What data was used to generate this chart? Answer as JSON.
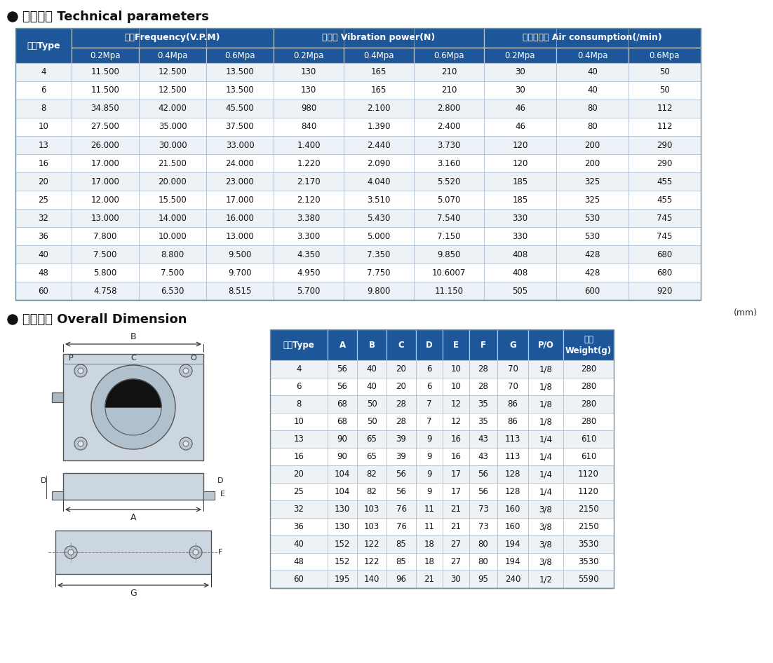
{
  "title1": "技术参数 Technical parameters",
  "title2": "外形尺寸 Overall Dimension",
  "header_bg": "#1e5799",
  "header_text": "#ffffff",
  "border_color": "#a0b4c8",
  "cell_text": "#222222",
  "tech_span_labels": [
    "型号Type",
    "频率Frequency(V.P.M)",
    "振动力 Vibration power(N)",
    "空气消耗量 Air consumption(/min)"
  ],
  "sub_labels": [
    "0.2Mpa",
    "0.4Mpa",
    "0.6Mpa",
    "0.2Mpa",
    "0.4Mpa",
    "0.6Mpa",
    "0.2Mpa",
    "0.4Mpa",
    "0.6Mpa"
  ],
  "tech_data": [
    [
      "4",
      "11.500",
      "12.500",
      "13.500",
      "130",
      "165",
      "210",
      "30",
      "40",
      "50"
    ],
    [
      "6",
      "11.500",
      "12.500",
      "13.500",
      "130",
      "165",
      "210",
      "30",
      "40",
      "50"
    ],
    [
      "8",
      "34.850",
      "42.000",
      "45.500",
      "980",
      "2.100",
      "2.800",
      "46",
      "80",
      "112"
    ],
    [
      "10",
      "27.500",
      "35.000",
      "37.500",
      "840",
      "1.390",
      "2.400",
      "46",
      "80",
      "112"
    ],
    [
      "13",
      "26.000",
      "30.000",
      "33.000",
      "1.400",
      "2.440",
      "3.730",
      "120",
      "200",
      "290"
    ],
    [
      "16",
      "17.000",
      "21.500",
      "24.000",
      "1.220",
      "2.090",
      "3.160",
      "120",
      "200",
      "290"
    ],
    [
      "20",
      "17.000",
      "20.000",
      "23.000",
      "2.170",
      "4.040",
      "5.520",
      "185",
      "325",
      "455"
    ],
    [
      "25",
      "12.000",
      "15.500",
      "17.000",
      "2.120",
      "3.510",
      "5.070",
      "185",
      "325",
      "455"
    ],
    [
      "32",
      "13.000",
      "14.000",
      "16.000",
      "3.380",
      "5.430",
      "7.540",
      "330",
      "530",
      "745"
    ],
    [
      "36",
      "7.800",
      "10.000",
      "13.000",
      "3.300",
      "5.000",
      "7.150",
      "330",
      "530",
      "745"
    ],
    [
      "40",
      "7.500",
      "8.800",
      "9.500",
      "4.350",
      "7.350",
      "9.850",
      "408",
      "428",
      "680"
    ],
    [
      "48",
      "5.800",
      "7.500",
      "9.700",
      "4.950",
      "7.750",
      "10.6007",
      "408",
      "428",
      "680"
    ],
    [
      "60",
      "4.758",
      "6.530",
      "8.515",
      "5.700",
      "9.800",
      "11.150",
      "505",
      "600",
      "920"
    ]
  ],
  "dim_headers": [
    "型号Type",
    "A",
    "B",
    "C",
    "D",
    "E",
    "F",
    "G",
    "P/O",
    "重量\nWeight(g)"
  ],
  "dim_data": [
    [
      "4",
      "56",
      "40",
      "20",
      "6",
      "10",
      "28",
      "70",
      "1/8",
      "280"
    ],
    [
      "6",
      "56",
      "40",
      "20",
      "6",
      "10",
      "28",
      "70",
      "1/8",
      "280"
    ],
    [
      "8",
      "68",
      "50",
      "28",
      "7",
      "12",
      "35",
      "86",
      "1/8",
      "280"
    ],
    [
      "10",
      "68",
      "50",
      "28",
      "7",
      "12",
      "35",
      "86",
      "1/8",
      "280"
    ],
    [
      "13",
      "90",
      "65",
      "39",
      "9",
      "16",
      "43",
      "113",
      "1/4",
      "610"
    ],
    [
      "16",
      "90",
      "65",
      "39",
      "9",
      "16",
      "43",
      "113",
      "1/4",
      "610"
    ],
    [
      "20",
      "104",
      "82",
      "56",
      "9",
      "17",
      "56",
      "128",
      "1/4",
      "1120"
    ],
    [
      "25",
      "104",
      "82",
      "56",
      "9",
      "17",
      "56",
      "128",
      "1/4",
      "1120"
    ],
    [
      "32",
      "130",
      "103",
      "76",
      "11",
      "21",
      "73",
      "160",
      "3/8",
      "2150"
    ],
    [
      "36",
      "130",
      "103",
      "76",
      "11",
      "21",
      "73",
      "160",
      "3/8",
      "2150"
    ],
    [
      "40",
      "152",
      "122",
      "85",
      "18",
      "27",
      "80",
      "194",
      "3/8",
      "3530"
    ],
    [
      "48",
      "152",
      "122",
      "85",
      "18",
      "27",
      "80",
      "194",
      "3/8",
      "3530"
    ],
    [
      "60",
      "195",
      "140",
      "96",
      "21",
      "30",
      "95",
      "240",
      "1/2",
      "5590"
    ]
  ]
}
